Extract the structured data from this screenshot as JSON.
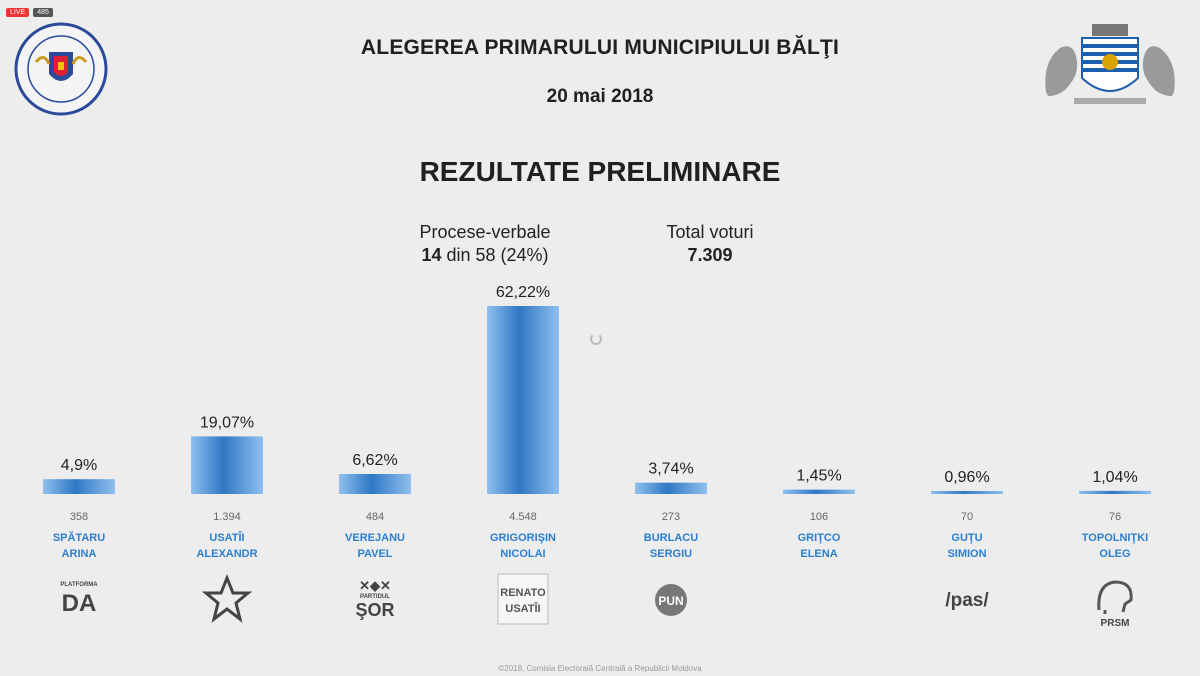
{
  "overlay": {
    "live_label": "LIVE",
    "views_label": "485"
  },
  "header": {
    "title": "ALEGEREA PRIMARULUI MUNICIPIULUI BĂLŢI",
    "date": "20 mai 2018",
    "subtitle": "REZULTATE PRELIMINARE"
  },
  "stats": {
    "pv_label": "Procese-verbale",
    "pv_count": "14",
    "pv_rest": "din 58 (24%)",
    "total_label": "Total voturi",
    "total_value": "7.309"
  },
  "chart_data": {
    "type": "bar",
    "categories": [
      "SPĂTARU ARINA",
      "USATÎI ALEXANDR",
      "VEREJANU PAVEL",
      "GRIGORIŞIN NICOLAI",
      "BURLACU SERGIU",
      "GRIŢCO ELENA",
      "GUŢU SIMION",
      "TOPOLNIŢKI OLEG"
    ],
    "surnames": [
      "SPĂTARU",
      "USATÎI",
      "VEREJANU",
      "GRIGORIŞIN",
      "BURLACU",
      "GRIŢCO",
      "GUŢU",
      "TOPOLNIŢKI"
    ],
    "firstnames": [
      "ARINA",
      "ALEXANDR",
      "PAVEL",
      "NICOLAI",
      "SERGIU",
      "ELENA",
      "SIMION",
      "OLEG"
    ],
    "values": [
      4.9,
      19.07,
      6.62,
      62.22,
      3.74,
      1.45,
      0.96,
      1.04
    ],
    "value_labels": [
      "4,9%",
      "19,07%",
      "6,62%",
      "62,22%",
      "3,74%",
      "1,45%",
      "0,96%",
      "1,04%"
    ],
    "votes": [
      "358",
      "1.394",
      "484",
      "4.548",
      "273",
      "106",
      "70",
      "76"
    ],
    "party_labels": [
      [
        "PLATFORMA",
        "DA"
      ],
      [],
      [
        "PARTIDUL",
        "ŞOR"
      ],
      [
        "RENATO",
        "USATÎI"
      ],
      [
        "PUN"
      ],
      [],
      [
        "/pas/"
      ],
      [
        "PRSM"
      ]
    ],
    "party_icons": [
      "da-logo",
      "star-icon",
      "sor-logo",
      "renato-usatii-logo",
      "pun-logo",
      "",
      "pas-logo",
      "prsm-logo"
    ],
    "ylim": [
      0,
      62.22
    ],
    "grid": false,
    "colors": {
      "bar_light": "#8fc0ee",
      "bar_dark": "#2f77c4",
      "name": "#2a7fd0",
      "votes": "#666666"
    }
  },
  "footer": {
    "text": "©2018, Comisia Electorală Centrală a Republicii Moldova"
  }
}
